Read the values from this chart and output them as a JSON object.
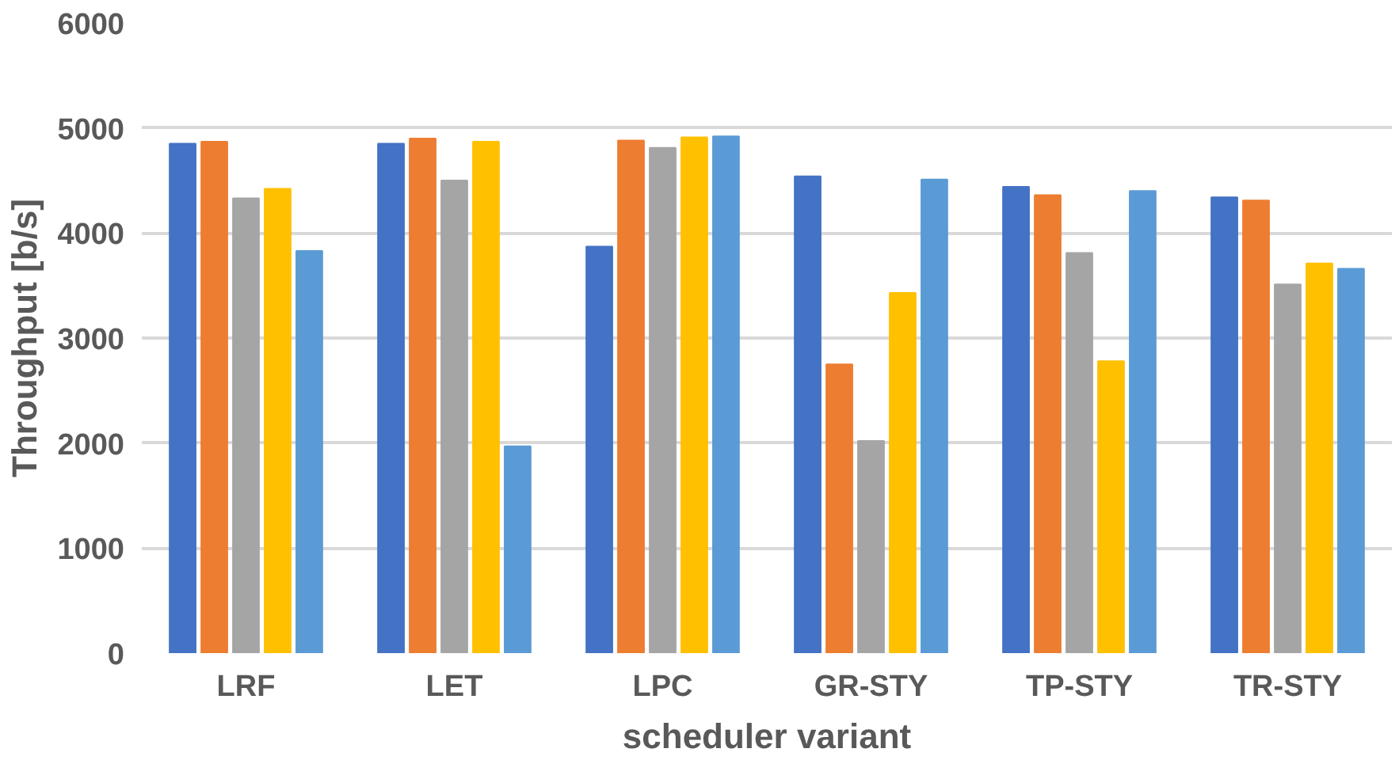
{
  "chart_data": {
    "type": "bar",
    "xlabel": "scheduler variant",
    "ylabel": "Throughput [b/s]",
    "categories": [
      "LRF",
      "LET",
      "LPC",
      "GR-STY",
      "TP-STY",
      "TR-STY"
    ],
    "series": [
      {
        "color": "#4472c4",
        "values": [
          4850,
          4850,
          3870,
          4540,
          4440,
          4340
        ]
      },
      {
        "color": "#ed7d31",
        "values": [
          4870,
          4900,
          4880,
          2750,
          4360,
          4310
        ]
      },
      {
        "color": "#a5a5a5",
        "values": [
          4330,
          4500,
          4810,
          2020,
          3810,
          3510
        ]
      },
      {
        "color": "#ffc000",
        "values": [
          4420,
          4870,
          4910,
          3430,
          2780,
          3710
        ]
      },
      {
        "color": "#5b9bd5",
        "values": [
          3830,
          1970,
          4920,
          4510,
          4400,
          3660
        ]
      }
    ],
    "ylim": [
      0,
      6000
    ],
    "yticks": [
      0,
      1000,
      2000,
      3000,
      4000,
      5000,
      6000
    ],
    "grid": "y"
  }
}
